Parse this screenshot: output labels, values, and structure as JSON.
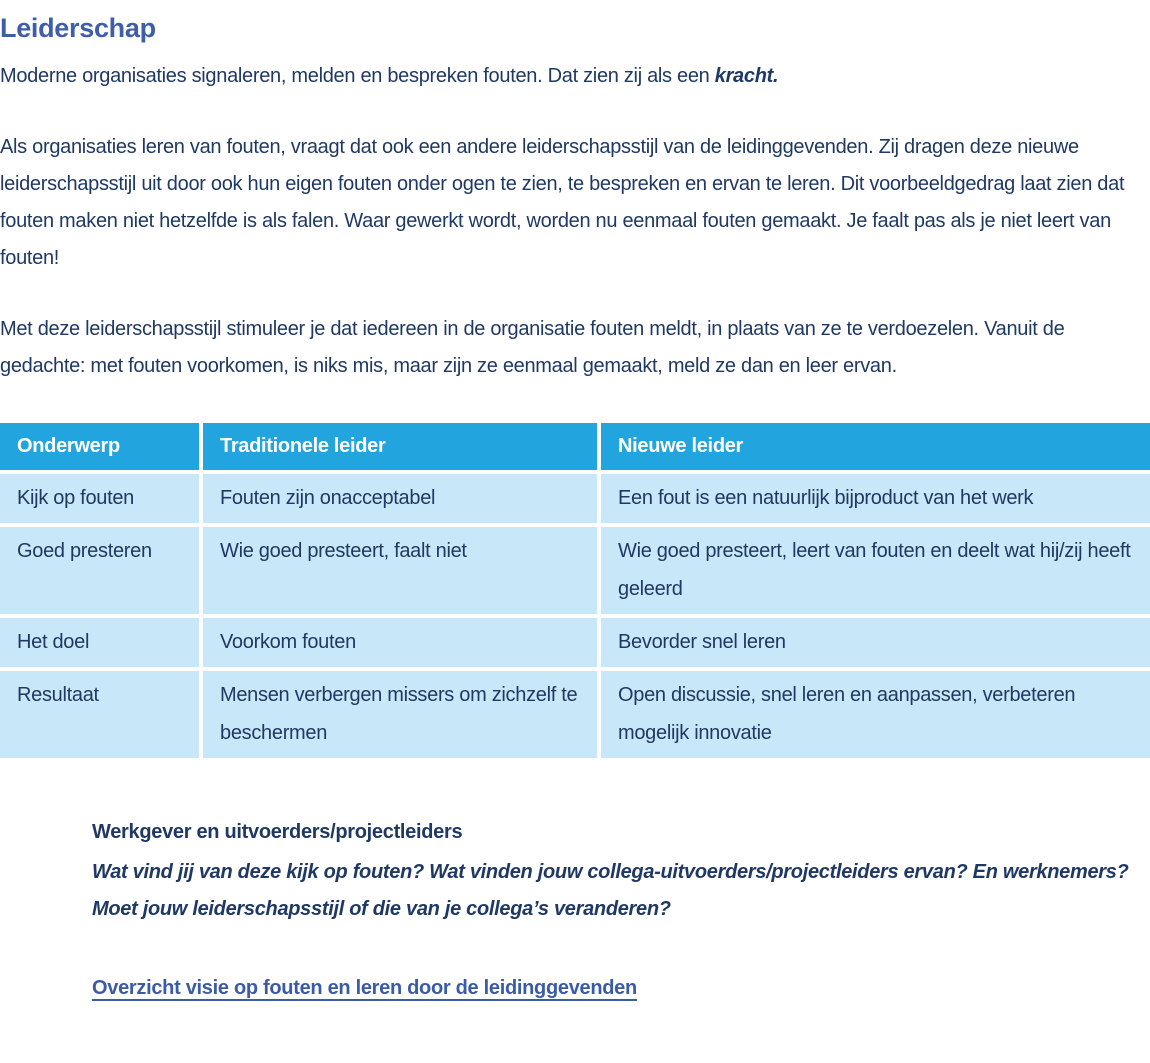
{
  "page": {
    "title": "Leiderschap",
    "intro": {
      "text_before": "Moderne organisaties signaleren, melden en bespreken fouten. Dat zien zij als een ",
      "emphasis": "kracht."
    },
    "paragraph_leadership_style": "Als organisaties leren van fouten, vraagt dat ook een andere leiderschapsstijl van de leidinggevenden. Zij dragen deze nieuwe leiderschapsstijl uit door ook hun eigen fouten onder ogen te zien, te bespreken en ervan te leren. Dit voorbeeldgedrag laat zien dat fouten maken niet hetzelfde is als falen. Waar gewerkt wordt, worden nu eenmaal fouten gemaakt. Je faalt pas als je niet leert van fouten!",
    "paragraph_stimulate": "Met deze leiderschapsstijl stimuleer je dat iedereen in de organisatie fouten meldt, in plaats van ze te verdoezelen. Vanuit de gedachte: met fouten voorkomen, is niks mis, maar zijn ze eenmaal gemaakt, meld ze dan en leer ervan."
  },
  "table": {
    "headers": [
      "Onderwerp",
      "Traditionele leider",
      "Nieuwe leider"
    ],
    "rows": [
      [
        "Kijk op fouten",
        "Fouten zijn onacceptabel",
        "Een fout is een natuurlijk bijproduct van het werk"
      ],
      [
        "Goed presteren",
        "Wie goed presteert, faalt niet",
        "Wie goed presteert, leert van fouten en deelt wat hij/zij heeft geleerd"
      ],
      [
        "Het doel",
        "Voorkom fouten",
        "Bevorder snel leren"
      ],
      [
        "Resultaat",
        "Mensen verbergen missers om zichzelf te beschermen",
        "Open discussie, snel leren en aanpassen, verbeteren mogelijk innovatie"
      ]
    ]
  },
  "assignment": {
    "heading": "Werkgever en uitvoerders/projectleiders",
    "question": "Wat vind jij van deze kijk op fouten? Wat vinden jouw collega-uitvoerders/projectleiders ervan? En werknemers? Moet jouw leiderschapsstijl of die van je collega’s veranderen?",
    "link_label": "Overzicht visie op fouten en leren door de leidinggevenden"
  },
  "colors": {
    "title_color": "#3E5EA8",
    "body_text": "#1F3864",
    "table_header_bg": "#22A5DF",
    "table_header_text": "#FFFFFF",
    "table_row_bg": "#C8E7F8",
    "link_color": "#3A5BA8"
  }
}
